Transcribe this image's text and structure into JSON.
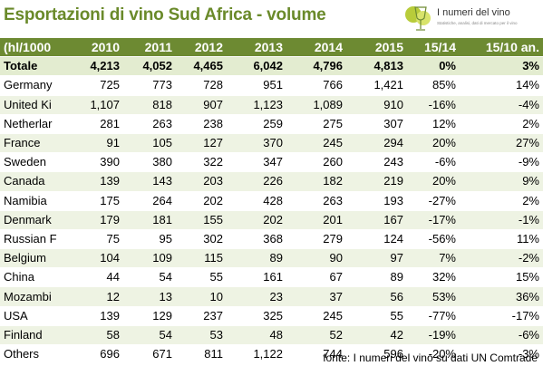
{
  "title": "Esportazioni di vino Sud Africa - volume",
  "logo": {
    "name": "I numeri del vino",
    "tagline": "Statistiche, analisi, dati di mercato per il vino"
  },
  "source": "fonte: I numeri del vino su dati UN Comtrade",
  "colors": {
    "header_bg": "#6d8a32",
    "title": "#6a8a2a",
    "zebra": "#eef3e3",
    "total_bg": "#e3ecd0"
  },
  "chart_data": {
    "type": "table",
    "columns": [
      "(hl/1000",
      "2010",
      "2011",
      "2012",
      "2013",
      "2014",
      "2015",
      "15/14",
      "15/10 an."
    ],
    "total": [
      "Totale",
      "4,213",
      "4,052",
      "4,465",
      "6,042",
      "4,796",
      "4,813",
      "0%",
      "3%"
    ],
    "rows": [
      [
        "Germany",
        "725",
        "773",
        "728",
        "951",
        "766",
        "1,421",
        "85%",
        "14%"
      ],
      [
        "United Ki",
        "1,107",
        "818",
        "907",
        "1,123",
        "1,089",
        "910",
        "-16%",
        "-4%"
      ],
      [
        "Netherlar",
        "281",
        "263",
        "238",
        "259",
        "275",
        "307",
        "12%",
        "2%"
      ],
      [
        "France",
        "91",
        "105",
        "127",
        "370",
        "245",
        "294",
        "20%",
        "27%"
      ],
      [
        "Sweden",
        "390",
        "380",
        "322",
        "347",
        "260",
        "243",
        "-6%",
        "-9%"
      ],
      [
        "Canada",
        "139",
        "143",
        "203",
        "226",
        "182",
        "219",
        "20%",
        "9%"
      ],
      [
        "Namibia",
        "175",
        "264",
        "202",
        "428",
        "263",
        "193",
        "-27%",
        "2%"
      ],
      [
        "Denmark",
        "179",
        "181",
        "155",
        "202",
        "201",
        "167",
        "-17%",
        "-1%"
      ],
      [
        "Russian F",
        "75",
        "95",
        "302",
        "368",
        "279",
        "124",
        "-56%",
        "11%"
      ],
      [
        "Belgium",
        "104",
        "109",
        "115",
        "89",
        "90",
        "97",
        "7%",
        "-2%"
      ],
      [
        "China",
        "44",
        "54",
        "55",
        "161",
        "67",
        "89",
        "32%",
        "15%"
      ],
      [
        "Mozambi",
        "12",
        "13",
        "10",
        "23",
        "37",
        "56",
        "53%",
        "36%"
      ],
      [
        "USA",
        "139",
        "129",
        "237",
        "325",
        "245",
        "55",
        "-77%",
        "-17%"
      ],
      [
        "Finland",
        "58",
        "54",
        "53",
        "48",
        "52",
        "42",
        "-19%",
        "-6%"
      ],
      [
        "Others",
        "696",
        "671",
        "811",
        "1,122",
        "744",
        "596",
        "-20%",
        "-3%"
      ]
    ]
  }
}
